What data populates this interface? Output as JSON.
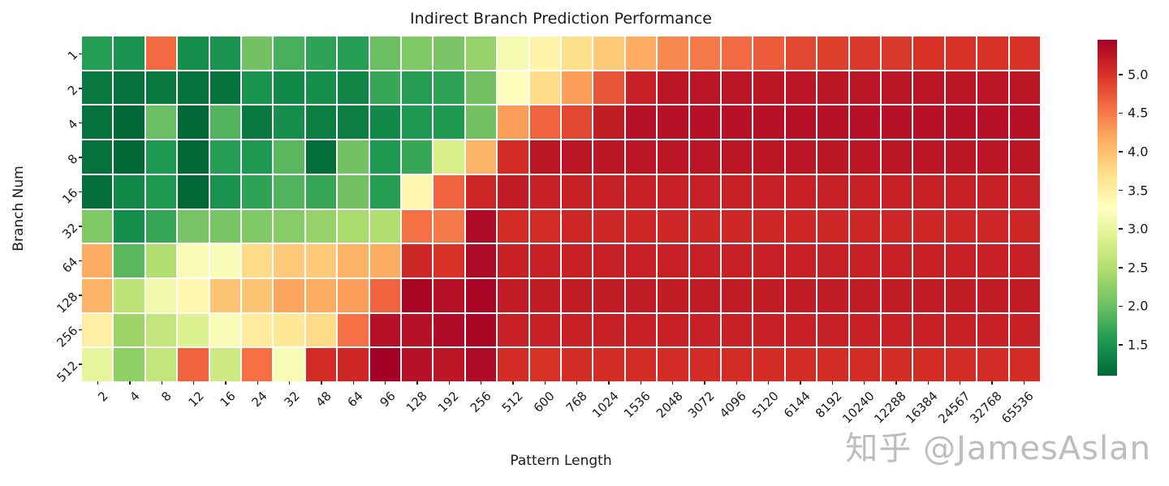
{
  "title": "Indirect Branch Prediction Performance",
  "watermark": "知乎 @JamesAslan",
  "chart_data": {
    "type": "heatmap",
    "title": "Indirect Branch Prediction Performance",
    "xlabel": "Pattern Length",
    "ylabel": "Branch Num",
    "x_categories": [
      "2",
      "4",
      "8",
      "12",
      "16",
      "24",
      "32",
      "48",
      "64",
      "96",
      "128",
      "192",
      "256",
      "512",
      "600",
      "768",
      "1024",
      "1536",
      "2048",
      "3072",
      "4096",
      "5120",
      "6144",
      "8192",
      "10240",
      "12288",
      "16384",
      "24567",
      "32768",
      "65536"
    ],
    "y_categories": [
      "1",
      "2",
      "4",
      "8",
      "16",
      "32",
      "64",
      "128",
      "256",
      "512"
    ],
    "values": [
      [
        1.6,
        1.5,
        4.6,
        1.45,
        1.5,
        2.05,
        1.8,
        1.65,
        1.6,
        2.0,
        2.15,
        2.1,
        2.3,
        3.15,
        3.45,
        3.7,
        3.9,
        4.15,
        4.4,
        4.5,
        4.6,
        4.7,
        4.85,
        4.9,
        4.95,
        4.95,
        5.0,
        5.0,
        5.0,
        5.0
      ],
      [
        1.25,
        1.2,
        1.25,
        1.2,
        1.2,
        1.5,
        1.4,
        1.45,
        1.35,
        1.7,
        1.6,
        1.65,
        2.05,
        3.3,
        3.75,
        4.25,
        4.75,
        5.15,
        5.25,
        5.25,
        5.25,
        5.25,
        5.25,
        5.25,
        5.25,
        5.25,
        5.25,
        5.25,
        5.25,
        5.25
      ],
      [
        1.2,
        1.1,
        2.0,
        1.1,
        1.85,
        1.25,
        1.45,
        1.3,
        1.3,
        1.4,
        1.55,
        1.55,
        2.05,
        4.25,
        4.65,
        4.85,
        5.2,
        5.3,
        5.3,
        5.3,
        5.3,
        5.3,
        5.3,
        5.3,
        5.3,
        5.3,
        5.3,
        5.3,
        5.3,
        5.3
      ],
      [
        1.2,
        1.1,
        1.55,
        1.1,
        1.6,
        1.55,
        1.9,
        1.15,
        2.05,
        1.55,
        1.7,
        2.85,
        4.1,
        5.05,
        5.25,
        5.25,
        5.25,
        5.25,
        5.25,
        5.25,
        5.25,
        5.25,
        5.25,
        5.25,
        5.25,
        5.25,
        5.25,
        5.25,
        5.25,
        5.25
      ],
      [
        1.15,
        1.4,
        1.55,
        1.1,
        1.5,
        1.65,
        1.85,
        1.7,
        2.05,
        1.6,
        3.4,
        4.65,
        5.1,
        5.2,
        5.15,
        5.15,
        5.15,
        5.15,
        5.15,
        5.15,
        5.15,
        5.15,
        5.15,
        5.15,
        5.15,
        5.15,
        5.15,
        5.15,
        5.15,
        5.15
      ],
      [
        2.15,
        1.45,
        1.7,
        2.1,
        2.1,
        2.15,
        2.2,
        2.3,
        2.45,
        2.5,
        4.55,
        4.5,
        5.35,
        5.05,
        5.05,
        5.1,
        5.1,
        5.1,
        5.1,
        5.1,
        5.1,
        5.1,
        5.1,
        5.1,
        5.1,
        5.1,
        5.1,
        5.1,
        5.1,
        5.1
      ],
      [
        4.15,
        1.9,
        2.5,
        3.2,
        3.2,
        3.75,
        3.9,
        3.9,
        4.1,
        4.15,
        5.1,
        5.0,
        5.35,
        5.15,
        5.15,
        5.15,
        5.15,
        5.15,
        5.15,
        5.15,
        5.15,
        5.15,
        5.15,
        5.15,
        5.15,
        5.15,
        5.15,
        5.15,
        5.15,
        5.15
      ],
      [
        4.1,
        2.6,
        3.1,
        3.4,
        3.95,
        3.95,
        4.2,
        4.15,
        4.25,
        4.65,
        5.4,
        5.3,
        5.4,
        5.2,
        5.2,
        5.2,
        5.2,
        5.2,
        5.2,
        5.2,
        5.2,
        5.2,
        5.2,
        5.2,
        5.2,
        5.2,
        5.2,
        5.2,
        5.2,
        5.2
      ],
      [
        3.5,
        2.35,
        2.65,
        2.9,
        3.2,
        3.55,
        3.6,
        3.75,
        4.55,
        5.3,
        5.3,
        5.35,
        5.4,
        5.15,
        5.15,
        5.15,
        5.15,
        5.15,
        5.15,
        5.15,
        5.15,
        5.15,
        5.15,
        5.15,
        5.15,
        5.15,
        5.15,
        5.15,
        5.15,
        5.15
      ],
      [
        3.0,
        2.25,
        2.65,
        4.65,
        2.75,
        4.55,
        3.2,
        5.05,
        5.1,
        5.45,
        5.3,
        5.25,
        5.35,
        5.05,
        5.0,
        5.05,
        5.05,
        5.05,
        5.05,
        5.05,
        5.05,
        5.05,
        5.05,
        5.05,
        5.05,
        5.05,
        5.05,
        5.05,
        5.05,
        5.05
      ]
    ],
    "vmin": 1.1,
    "vmax": 5.45,
    "colormap_name": "RdYlGn_r",
    "colormap_low_to_high": [
      "#006837",
      "#1a9850",
      "#66bd63",
      "#a6d96a",
      "#d9ef8b",
      "#ffffbf",
      "#fee08b",
      "#fdae61",
      "#f46d43",
      "#d73027",
      "#a50026"
    ],
    "colorbar_ticks": [
      1.5,
      2.0,
      2.5,
      3.0,
      3.5,
      4.0,
      4.5,
      5.0
    ],
    "gridline_color": "#ffffff",
    "legend_position": "right",
    "grid": false
  },
  "layout_text": {
    "text_color": "#1a1a1a"
  }
}
